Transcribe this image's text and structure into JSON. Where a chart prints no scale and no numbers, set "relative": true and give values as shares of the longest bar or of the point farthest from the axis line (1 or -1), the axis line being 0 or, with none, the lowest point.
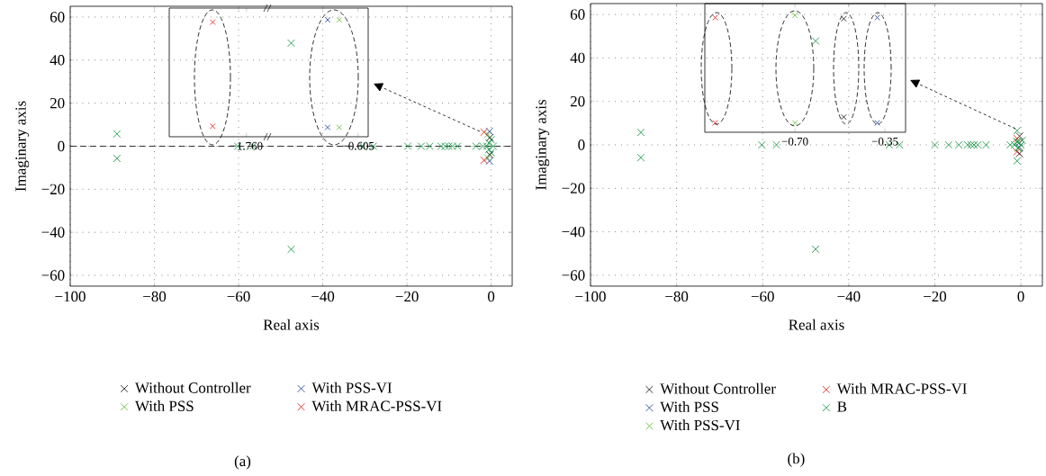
{
  "chart_data": [
    {
      "type": "scatter",
      "xlabel": "Real axis",
      "ylabel": "Imaginary axis",
      "xlim": [
        -100,
        5
      ],
      "ylim": [
        -65,
        65
      ],
      "xticks": [
        {
          "value": -100,
          "label": "−100"
        },
        {
          "value": -80,
          "label": "−80"
        },
        {
          "value": -60,
          "label": "−60"
        },
        {
          "value": -40,
          "label": "−40"
        },
        {
          "value": -20,
          "label": "−20"
        },
        0
      ],
      "yticks": [
        {
          "value": -60,
          "label": "−60"
        },
        {
          "value": -40,
          "label": "−40"
        },
        {
          "value": -20,
          "label": "−20"
        },
        0,
        20,
        40,
        60
      ],
      "grid": true,
      "marker": "cross",
      "legend": "bottom",
      "ref_lines": [
        {
          "axis": "y",
          "value": 0,
          "line_style": "dashed",
          "color": "#000000"
        }
      ],
      "annotations": [
        "(a)"
      ],
      "series": [
        {
          "color": "#1a9a4a",
          "x": [
            -88.9,
            -88.9,
            -60.2,
            -56.6,
            -47.5,
            -47.5,
            -30.5,
            -28,
            -19.8,
            -16.6,
            -14.6,
            -11.9,
            -10.9,
            -10.1,
            -9.2,
            -8.0,
            -3.6,
            -2.0,
            -1.0,
            -0.5,
            -0.5,
            0,
            0,
            0.5
          ],
          "values": [
            5.7,
            -5.7,
            0,
            0,
            47.9,
            -47.9,
            0,
            0,
            0,
            0,
            0,
            0,
            0,
            0,
            0,
            0,
            0,
            0,
            0,
            1.5,
            -1.5,
            3,
            -3,
            0
          ]
        },
        {
          "name": "Without Controller",
          "color": "#222222",
          "x": [
            -0.3,
            -0.3
          ],
          "values": [
            4,
            -4
          ]
        },
        {
          "name": "With PSS",
          "color": "#66c23a",
          "x": [
            -0.8,
            -0.8
          ],
          "values": [
            5.5,
            -5.5
          ]
        },
        {
          "name": "With PSS-VI",
          "color": "#2b4aa0",
          "x": [
            -0.4,
            -0.4
          ],
          "values": [
            6.9,
            -6.9
          ]
        },
        {
          "name": "With MRAC-PSS-VI",
          "color": "#e52521",
          "x": [
            -1.7,
            -1.7
          ],
          "values": [
            6.5,
            -6.5
          ]
        }
      ]
    },
    {
      "type": "scatter",
      "relative": true,
      "xlim": [
        -2.56,
        -0.5
      ],
      "xticks": [
        {
          "value": -1.76,
          "label": "−1.760"
        },
        {
          "value": -0.605,
          "label": "−0.605"
        }
      ],
      "tick_labels": "x",
      "marker": "cross",
      "series": [
        {
          "color": "#e52521",
          "x": [
            -2.11,
            -2.11
          ],
          "values": [
            0.98,
            0.09
          ]
        },
        {
          "color": "#2b4aa0",
          "x": [
            -0.92,
            -0.92
          ],
          "values": [
            1,
            0.08
          ]
        },
        {
          "color": "#66c23a",
          "x": [
            -0.8,
            -0.8
          ],
          "values": [
            1,
            0.08
          ]
        }
      ]
    },
    {
      "type": "scatter",
      "xlabel": "Real axis",
      "ylabel": "Imaginary axis",
      "xlim": [
        -100,
        5
      ],
      "ylim": [
        -65,
        65
      ],
      "xticks": [
        {
          "value": -100,
          "label": "−100"
        },
        {
          "value": -80,
          "label": "−80"
        },
        {
          "value": -60,
          "label": "−60"
        },
        {
          "value": -40,
          "label": "−40"
        },
        {
          "value": -20,
          "label": "−20"
        },
        0
      ],
      "yticks": [
        {
          "value": -60,
          "label": "−60"
        },
        {
          "value": -40,
          "label": "−40"
        },
        {
          "value": -20,
          "label": "−20"
        },
        0,
        20,
        40,
        60
      ],
      "grid": true,
      "marker": "cross",
      "legend": "bottom",
      "annotations": [
        "(b)"
      ],
      "series": [
        {
          "name": "Without Controller",
          "color": "#222222",
          "x": [
            -0.3,
            -0.3
          ],
          "values": [
            4,
            -4
          ]
        },
        {
          "name": "With PSS",
          "color": "#2b4aa0",
          "x": [
            -0.4,
            -0.4
          ],
          "values": [
            1,
            -1
          ]
        },
        {
          "name": "With PSS-VI",
          "color": "#66c23a",
          "x": [
            -0.7,
            -0.7
          ],
          "values": [
            1.5,
            -1.5
          ]
        },
        {
          "name": "With MRAC-PSS-VI",
          "color": "#e52521",
          "x": [
            -0.9,
            -0.9
          ],
          "values": [
            2.9,
            -3.2
          ]
        },
        {
          "name": "B",
          "color": "#1a9a4a",
          "x": [
            -88.3,
            -88.3,
            -60.2,
            -56.8,
            -47.7,
            -47.7,
            -30.6,
            -28.2,
            -20,
            -16.8,
            -14.4,
            -12.4,
            -11.6,
            -10.9,
            -10,
            -8.1,
            -2.5,
            -1.5,
            -1,
            -0.5,
            -0.9,
            -0.9,
            0,
            0.3
          ],
          "values": [
            5.7,
            -5.9,
            0,
            0,
            47.8,
            -48,
            0,
            0,
            0,
            0,
            0,
            0,
            0,
            0,
            0,
            0,
            0,
            0,
            1.5,
            -1.5,
            6.5,
            -7.4,
            0,
            2
          ]
        }
      ]
    },
    {
      "type": "scatter",
      "relative": true,
      "xlim": [
        -1.05,
        -0.27
      ],
      "xticks": [
        {
          "value": -0.7,
          "label": "−0.70"
        },
        {
          "value": -0.35,
          "label": "−0.35"
        }
      ],
      "tick_labels": "x",
      "marker": "cross",
      "series": [
        {
          "color": "#e52521",
          "x": [
            -1.01,
            -1.01
          ],
          "values": [
            0.98,
            0.08
          ]
        },
        {
          "color": "#66c23a",
          "x": [
            -0.7,
            -0.7
          ],
          "values": [
            1,
            0.08
          ]
        },
        {
          "color": "#222222",
          "x": [
            -0.51,
            -0.51
          ],
          "values": [
            0.97,
            0.13
          ]
        },
        {
          "color": "#2b4aa0",
          "x": [
            -0.38,
            -0.38
          ],
          "values": [
            0.98,
            0.08
          ]
        }
      ]
    }
  ]
}
